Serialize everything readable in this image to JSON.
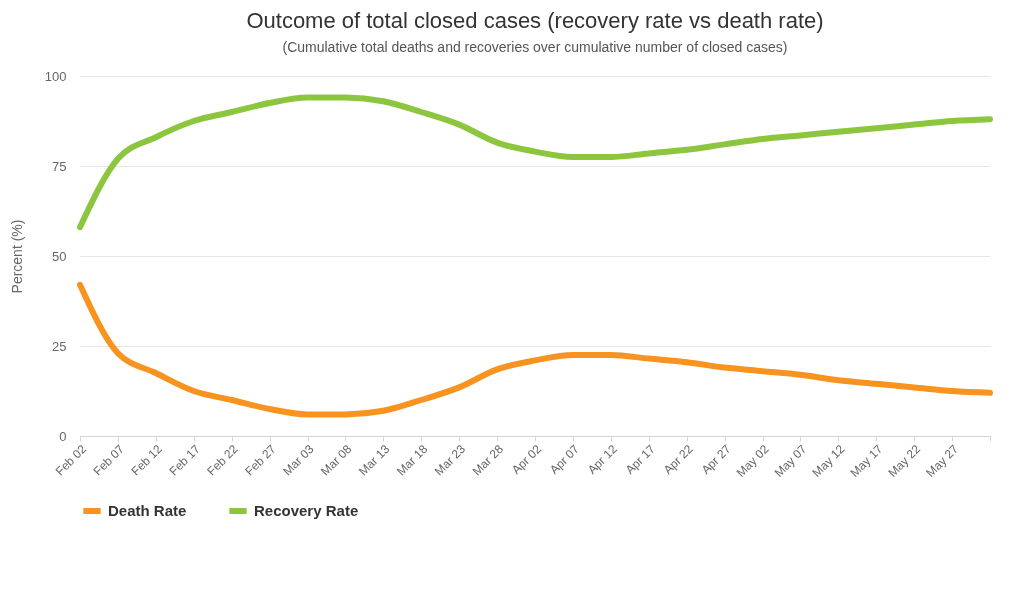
{
  "chart_data": {
    "type": "line",
    "title": "Outcome of total closed cases (recovery rate vs death rate)",
    "subtitle": "(Cumulative total deaths and recoveries over cumulative number of closed cases)",
    "ylabel": "Percent (%)",
    "categories": [
      "Feb 02",
      "Feb 07",
      "Feb 12",
      "Feb 17",
      "Feb 22",
      "Feb 27",
      "Mar 03",
      "Mar 08",
      "Mar 13",
      "Mar 18",
      "Mar 23",
      "Mar 28",
      "Apr 02",
      "Apr 07",
      "Apr 12",
      "Apr 17",
      "Apr 22",
      "Apr 27",
      "May 02",
      "May 07",
      "May 12",
      "May 17",
      "May 22",
      "May 27",
      null
    ],
    "series": [
      {
        "name": "Death Rate",
        "color": "#f7931e",
        "values": [
          42,
          23,
          17.5,
          12.5,
          10,
          7.5,
          6,
          6,
          7,
          10,
          13.5,
          18.5,
          21,
          22.5,
          22.5,
          21.5,
          20.5,
          19,
          18,
          17,
          15.5,
          14.5,
          13.5,
          12.5,
          12
        ]
      },
      {
        "name": "Recovery Rate",
        "color": "#8cc63f",
        "values": [
          58,
          77,
          83,
          87.5,
          90,
          92.5,
          94,
          94,
          93,
          90,
          86.5,
          81.5,
          79,
          77.5,
          77.5,
          78.5,
          79.5,
          81,
          82.5,
          83.5,
          84.5,
          85.5,
          86.5,
          87.5,
          88
        ]
      }
    ],
    "ylim": [
      0,
      100
    ],
    "yticks": [
      0,
      25,
      50,
      75,
      100
    ],
    "grid": "y",
    "legend": "bottom",
    "marker": "none",
    "line_style": "solid"
  }
}
